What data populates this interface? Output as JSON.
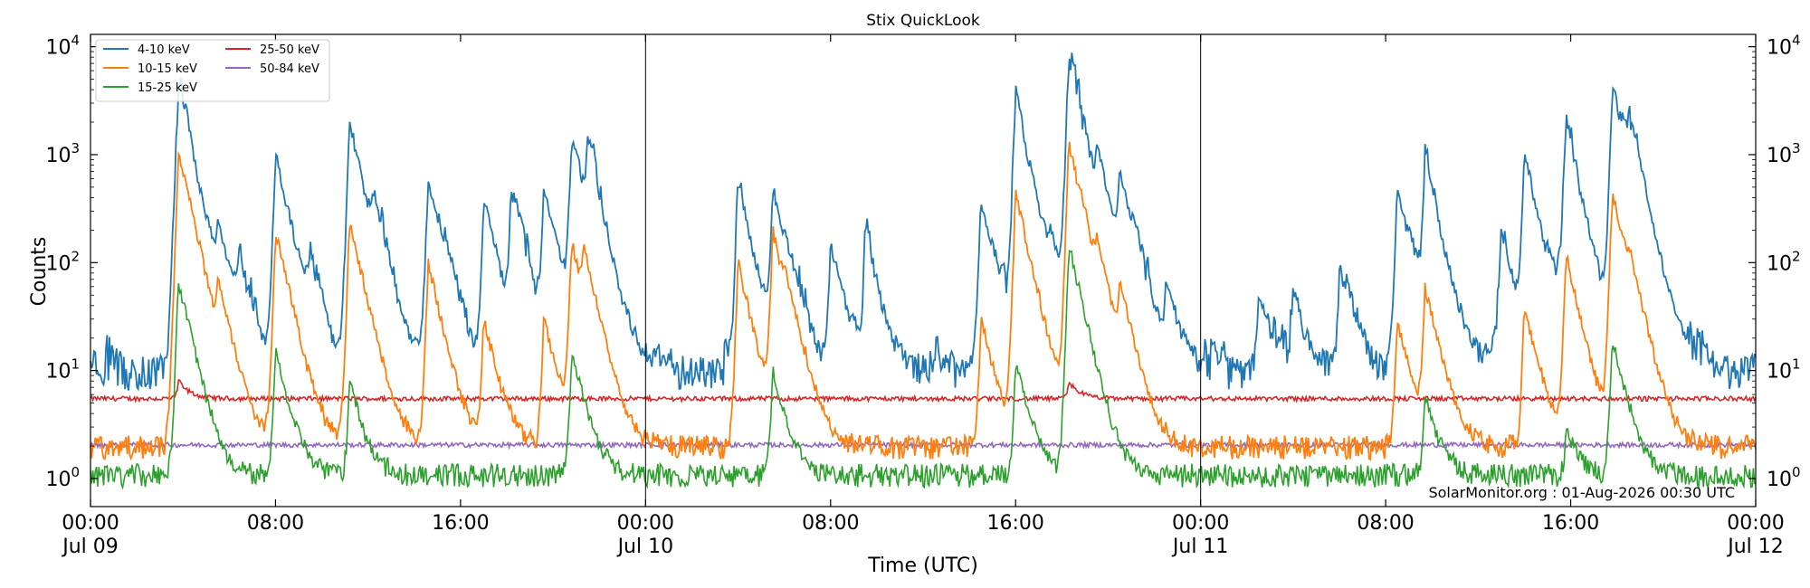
{
  "chart_data": {
    "type": "line",
    "title": "Stix QuickLook",
    "xlabel": "Time (UTC)",
    "ylabel": "Counts",
    "yscale": "log",
    "ylim": [
      0.55,
      13000
    ],
    "xlim_hours": [
      0,
      72
    ],
    "y_ticks": [
      {
        "base": "10",
        "exp": "0",
        "value": 1
      },
      {
        "base": "10",
        "exp": "1",
        "value": 10
      },
      {
        "base": "10",
        "exp": "2",
        "value": 100
      },
      {
        "base": "10",
        "exp": "3",
        "value": 1000
      },
      {
        "base": "10",
        "exp": "4",
        "value": 10000
      }
    ],
    "x_ticks": [
      {
        "hour": 0,
        "line1": "00:00",
        "line2": "Jul 09"
      },
      {
        "hour": 8,
        "line1": "08:00",
        "line2": ""
      },
      {
        "hour": 16,
        "line1": "16:00",
        "line2": ""
      },
      {
        "hour": 24,
        "line1": "00:00",
        "line2": "Jul 10"
      },
      {
        "hour": 32,
        "line1": "08:00",
        "line2": ""
      },
      {
        "hour": 40,
        "line1": "16:00",
        "line2": ""
      },
      {
        "hour": 48,
        "line1": "00:00",
        "line2": "Jul 11"
      },
      {
        "hour": 56,
        "line1": "08:00",
        "line2": ""
      },
      {
        "hour": 64,
        "line1": "16:00",
        "line2": ""
      },
      {
        "hour": 72,
        "line1": "00:00",
        "line2": "Jul 12"
      }
    ],
    "day_boundaries_hours": [
      24,
      48
    ],
    "legend_position": "upper-left",
    "series": [
      {
        "name": "4-10 keV",
        "color": "#1f77b4",
        "baseline": 10,
        "peaks": [
          [
            3.8,
            3500
          ],
          [
            4.1,
            250
          ],
          [
            5.5,
            180
          ],
          [
            6.4,
            70
          ],
          [
            8.0,
            1000
          ],
          [
            9.5,
            60
          ],
          [
            11.2,
            2000
          ],
          [
            12.2,
            200
          ],
          [
            14.6,
            600
          ],
          [
            17.0,
            400
          ],
          [
            18.2,
            400
          ],
          [
            19.6,
            500
          ],
          [
            20.8,
            1400
          ],
          [
            21.5,
            800
          ],
          [
            28.0,
            500
          ],
          [
            29.5,
            500
          ],
          [
            32.0,
            150
          ],
          [
            33.5,
            150
          ],
          [
            38.5,
            400
          ],
          [
            40.0,
            3200
          ],
          [
            41.5,
            100
          ],
          [
            42.3,
            7000
          ],
          [
            43.5,
            800
          ],
          [
            44.5,
            600
          ],
          [
            46.5,
            60
          ],
          [
            50.5,
            50
          ],
          [
            52.0,
            50
          ],
          [
            54.0,
            80
          ],
          [
            56.5,
            500
          ],
          [
            57.7,
            800
          ],
          [
            61.0,
            200
          ],
          [
            62.0,
            1000
          ],
          [
            63.8,
            1800
          ],
          [
            65.8,
            4000
          ],
          [
            66.5,
            1400
          ]
        ]
      },
      {
        "name": "10-15 keV",
        "color": "#ff7f0e",
        "baseline": 2,
        "peaks": [
          [
            3.8,
            1000
          ],
          [
            4.1,
            50
          ],
          [
            5.5,
            50
          ],
          [
            8.0,
            200
          ],
          [
            11.2,
            250
          ],
          [
            14.6,
            100
          ],
          [
            17.0,
            30
          ],
          [
            19.6,
            30
          ],
          [
            20.8,
            160
          ],
          [
            21.3,
            100
          ],
          [
            28.0,
            100
          ],
          [
            29.5,
            200
          ],
          [
            30.0,
            30
          ],
          [
            38.5,
            30
          ],
          [
            40.0,
            450
          ],
          [
            42.3,
            1300
          ],
          [
            42.8,
            40
          ],
          [
            43.5,
            80
          ],
          [
            44.5,
            50
          ],
          [
            56.5,
            30
          ],
          [
            57.7,
            60
          ],
          [
            62.0,
            40
          ],
          [
            63.8,
            120
          ],
          [
            65.8,
            450
          ],
          [
            66.5,
            50
          ]
        ]
      },
      {
        "name": "15-25 keV",
        "color": "#2ca02c",
        "baseline": 1.1,
        "peaks": [
          [
            3.8,
            70
          ],
          [
            8.0,
            15
          ],
          [
            11.2,
            8
          ],
          [
            20.8,
            15
          ],
          [
            29.5,
            10
          ],
          [
            40.0,
            12
          ],
          [
            42.3,
            150
          ],
          [
            57.7,
            6
          ],
          [
            63.8,
            3
          ],
          [
            65.8,
            20
          ]
        ]
      },
      {
        "name": "25-50 keV",
        "color": "#d62728",
        "baseline": 5.5,
        "peaks": [
          [
            3.8,
            8
          ],
          [
            42.3,
            8
          ]
        ]
      },
      {
        "name": "50-84 keV",
        "color": "#9467bd",
        "baseline": 2.05,
        "peaks": []
      }
    ]
  },
  "footer": {
    "text": "SolarMonitor.org : 01-Aug-2026 00:30 UTC"
  }
}
